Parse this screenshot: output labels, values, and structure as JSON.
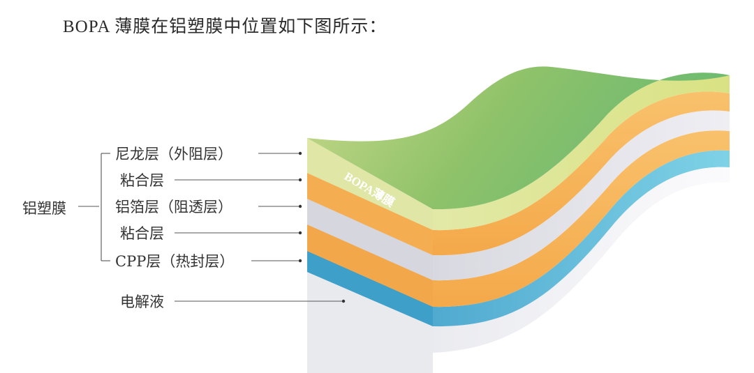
{
  "title": "BOPA 薄膜在铝塑膜中位置如下图所示：",
  "group_label": "铝塑膜",
  "layers": [
    {
      "label": "尼龙层（外阻层）"
    },
    {
      "label": "粘合层"
    },
    {
      "label": "铝箔层（阻透层）"
    },
    {
      "label": "粘合层"
    },
    {
      "label": "CPP层（热封层）"
    },
    {
      "label": "电解液"
    }
  ],
  "film_text": "BOPA薄膜",
  "colors": {
    "nylon": "#9ec46a",
    "adhesive": "#f7b55d",
    "foil": "#d9d8de",
    "cpp": "#4fb6d5",
    "electrolyte": "#f0f1f5"
  }
}
